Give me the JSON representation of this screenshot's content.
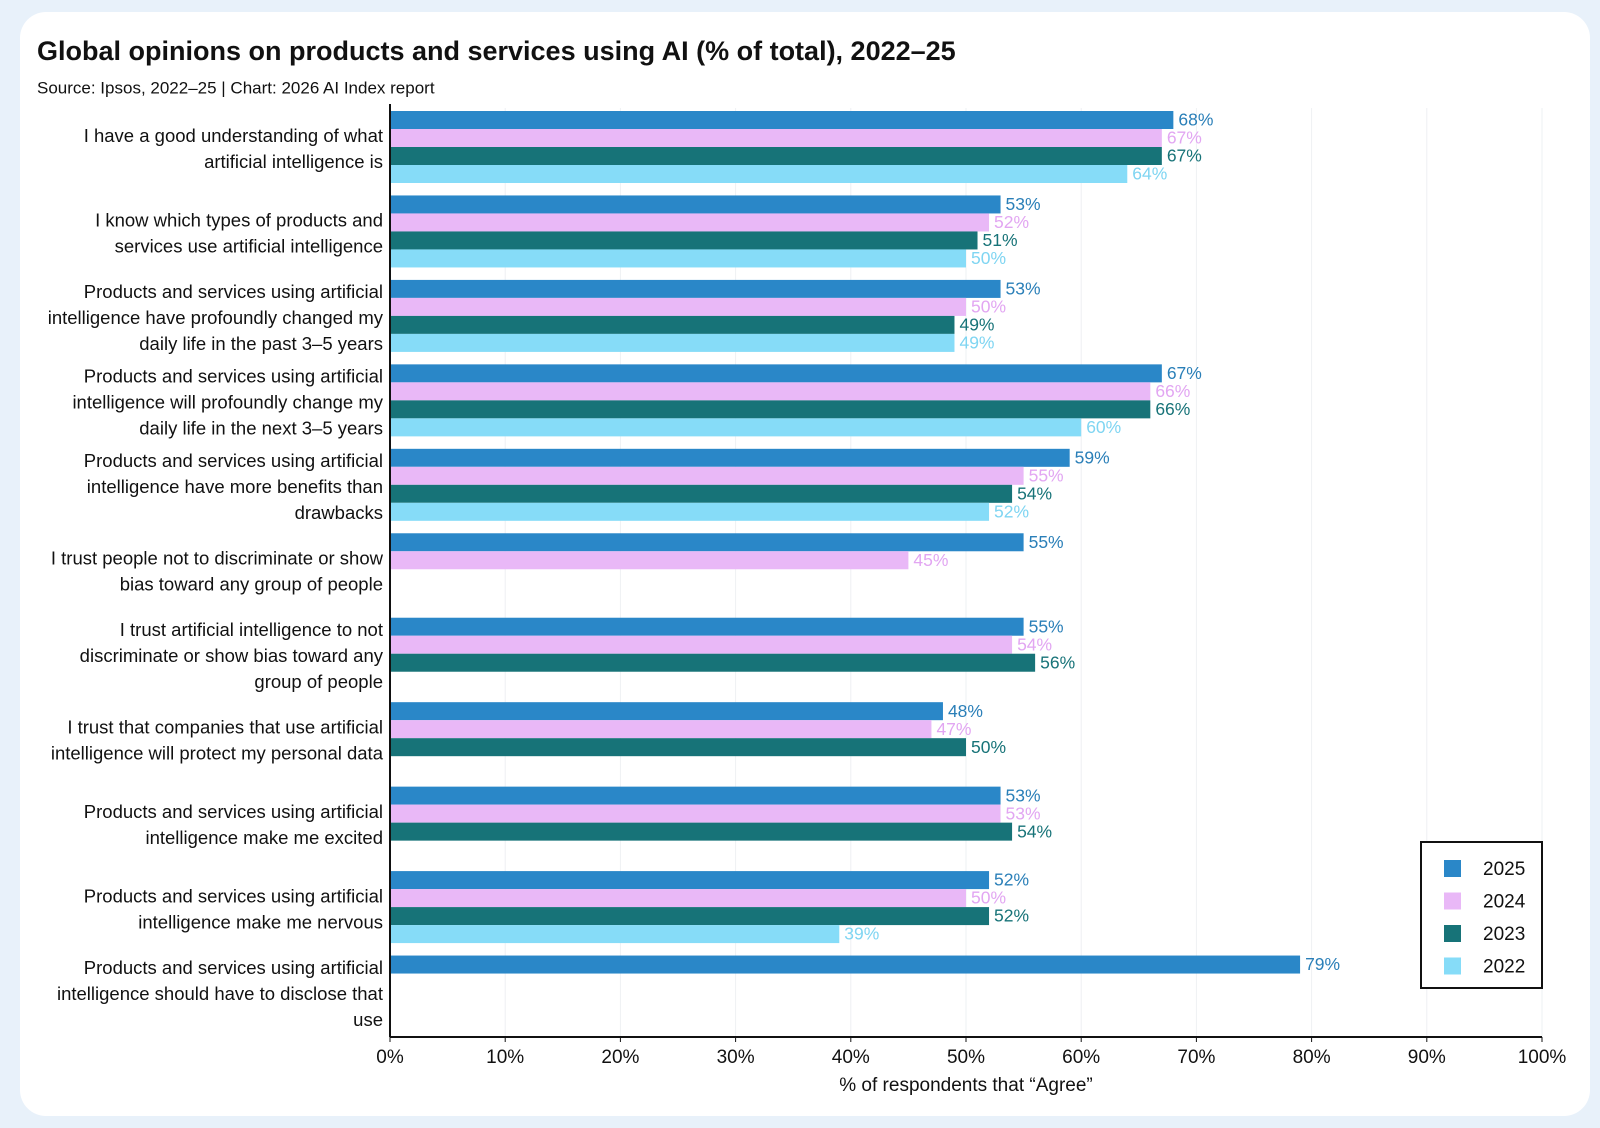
{
  "chart_data": {
    "type": "barh",
    "title": "Global opinions on products and services using AI (% of total), 2022–25",
    "subtitle": "Source: Ipsos, 2022–25 | Chart: 2026 AI Index report",
    "x_label": "% of respondents that “Agree”",
    "categories": [
      "I have a good understanding of what artificial intelligence is",
      "I know which types of products and services use artificial intelligence",
      "Products and services using artificial intelligence have profoundly changed my daily life in the past 3–5 years",
      "Products and services using artificial intelligence will profoundly change my daily life in the next 3–5 years",
      "Products and services using artificial intelligence have more benefits than drawbacks",
      "I trust people not to discriminate or show bias toward any group of people",
      "I trust artificial intelligence to not discriminate or show bias toward any group of people",
      "I trust that companies that use artificial intelligence will protect my personal data",
      "Products and services using artificial intelligence make me excited",
      "Products and services using artificial intelligence make me nervous",
      "Products and services using artificial intelligence should have to disclose that use"
    ],
    "series": [
      {
        "name": "2025",
        "color": "#2a87c8",
        "label_color": "#2a7fb8",
        "values": [
          68,
          53,
          53,
          67,
          59,
          55,
          55,
          48,
          53,
          52,
          79
        ],
        "value_labels": [
          "68%",
          "53%",
          "53%",
          "67%",
          "59%",
          "55%",
          "55%",
          "48%",
          "53%",
          "52%",
          "79%"
        ]
      },
      {
        "name": "2024",
        "color": "#e9b8f7",
        "label_color": "#e2a6f2",
        "values": [
          67,
          52,
          50,
          66,
          55,
          45,
          54,
          47,
          53,
          50,
          null
        ],
        "value_labels": [
          "67%",
          "52%",
          "50%",
          "66%",
          "55%",
          "45%",
          "54%",
          "47%",
          "53%",
          "50%",
          null
        ]
      },
      {
        "name": "2023",
        "color": "#177378",
        "label_color": "#177378",
        "values": [
          67,
          51,
          49,
          66,
          54,
          null,
          56,
          50,
          54,
          52,
          null
        ],
        "value_labels": [
          "67%",
          "51%",
          "49%",
          "66%",
          "54%",
          null,
          "56%",
          "50%",
          "54%",
          "52%",
          null
        ]
      },
      {
        "name": "2022",
        "color": "#86dcf8",
        "label_color": "#7fd5f2",
        "values": [
          64,
          50,
          49,
          60,
          52,
          null,
          null,
          null,
          null,
          39,
          null
        ],
        "value_labels": [
          "64%",
          "50%",
          "49%",
          "60%",
          "52%",
          null,
          null,
          null,
          null,
          "39%",
          null
        ]
      }
    ],
    "xlim": [
      0,
      100
    ],
    "xticks": [
      {
        "value": 0,
        "label": "0%"
      },
      {
        "value": 10,
        "label": "10%"
      },
      {
        "value": 20,
        "label": "20%"
      },
      {
        "value": 30,
        "label": "30%"
      },
      {
        "value": 40,
        "label": "40%"
      },
      {
        "value": 50,
        "label": "50%"
      },
      {
        "value": 60,
        "label": "60%"
      },
      {
        "value": 70,
        "label": "70%"
      },
      {
        "value": 80,
        "label": "80%"
      },
      {
        "value": 90,
        "label": "90%"
      },
      {
        "value": 100,
        "label": "100%"
      }
    ],
    "grid": true,
    "legend": "lower right"
  }
}
